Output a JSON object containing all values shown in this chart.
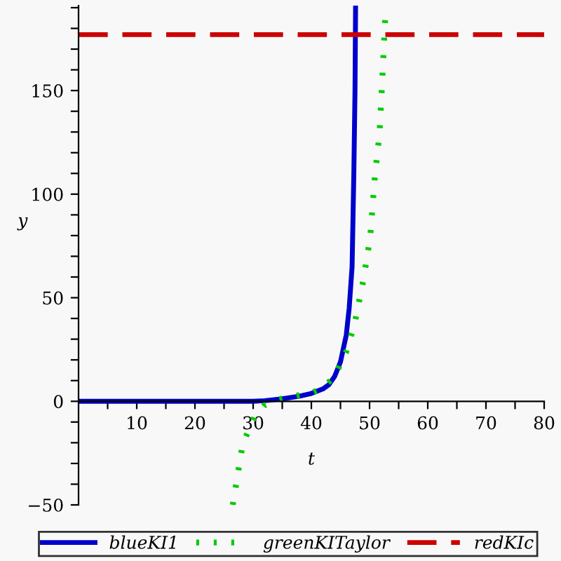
{
  "chart_data": {
    "type": "line",
    "xlabel": "t",
    "ylabel": "y",
    "xlim": [
      0,
      80
    ],
    "ylim": [
      -50,
      191
    ],
    "xticks": [
      {
        "value": 5,
        "label": null
      },
      10,
      {
        "value": 15,
        "label": null
      },
      20,
      {
        "value": 25,
        "label": null
      },
      30,
      {
        "value": 35,
        "label": null
      },
      40,
      {
        "value": 45,
        "label": null
      },
      50,
      {
        "value": 55,
        "label": null
      },
      60,
      {
        "value": 65,
        "label": null
      },
      70,
      {
        "value": 75,
        "label": null
      },
      80
    ],
    "yticks": [
      -50,
      {
        "value": -40,
        "label": null
      },
      {
        "value": -30,
        "label": null
      },
      {
        "value": -20,
        "label": null
      },
      {
        "value": -10,
        "label": null
      },
      0,
      {
        "value": 10,
        "label": null
      },
      {
        "value": 20,
        "label": null
      },
      {
        "value": 30,
        "label": null
      },
      {
        "value": 40,
        "label": null
      },
      50,
      {
        "value": 60,
        "label": null
      },
      {
        "value": 70,
        "label": null
      },
      {
        "value": 80,
        "label": null
      },
      {
        "value": 90,
        "label": null
      },
      100,
      {
        "value": 110,
        "label": null
      },
      {
        "value": 120,
        "label": null
      },
      {
        "value": 130,
        "label": null
      },
      {
        "value": 140,
        "label": null
      },
      150,
      {
        "value": 160,
        "label": null
      },
      {
        "value": 170,
        "label": null
      },
      {
        "value": 180,
        "label": null
      },
      {
        "value": 190,
        "label": null
      }
    ],
    "grid": false,
    "legend": "bottom",
    "marker": "none",
    "series": [
      {
        "name": "blueKI1",
        "color": "#0000cc",
        "line_style": "solid",
        "x": [
          0,
          30,
          32,
          35,
          38,
          40,
          42,
          43,
          44,
          45,
          46,
          46.5,
          47,
          47.3,
          47.5,
          47.6
        ],
        "values": [
          0,
          0,
          0.3,
          1.2,
          2.5,
          3.8,
          6,
          8,
          12,
          19,
          32,
          45,
          65,
          110,
          150,
          191
        ]
      },
      {
        "name": "greenKITaylor",
        "color": "#00cc00",
        "line_style": "dotted",
        "x": [
          26.5,
          28.2,
          30.2,
          31.9,
          34.5,
          37,
          40,
          42,
          44,
          46,
          47.4,
          48.9,
          50.1,
          50.9,
          51.7,
          52.1,
          52.7
        ],
        "values": [
          -50,
          -20.6,
          -7.7,
          -2,
          1,
          2.5,
          4,
          6.5,
          12,
          24,
          37,
          58,
          79,
          108,
          129,
          150.6,
          185.7
        ]
      },
      {
        "name": "redKIc",
        "color": "#cc0000",
        "line_style": "dashed",
        "x": [
          0,
          80
        ],
        "values": [
          177,
          177
        ]
      }
    ]
  }
}
